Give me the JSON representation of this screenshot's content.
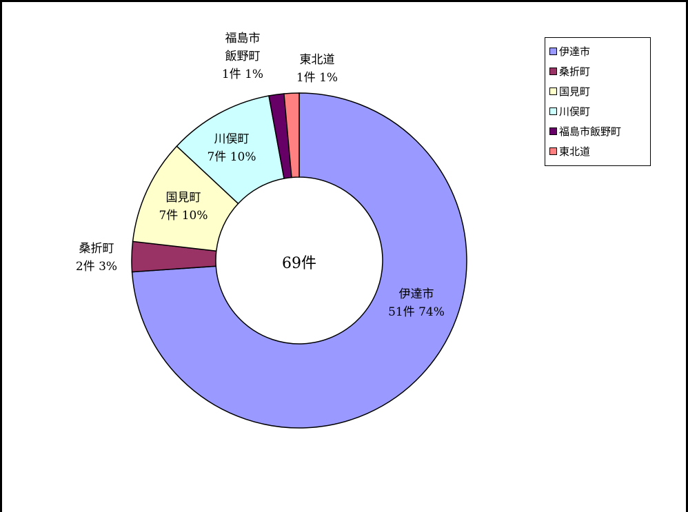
{
  "chart_data": {
    "type": "donut",
    "categories": [
      "伊達市",
      "桑折町",
      "国見町",
      "川俣町",
      "福島市飯野町",
      "東北道"
    ],
    "values": [
      51,
      2,
      7,
      7,
      1,
      1
    ],
    "value_labels": [
      "51件 74%",
      "2件 3%",
      "7件 10%",
      "7件 10%",
      "1件 1%",
      "1件 1%"
    ],
    "colors": [
      "#9999ff",
      "#993366",
      "#ffffcc",
      "#ccffff",
      "#660066",
      "#ff8080"
    ],
    "center_label": "69件",
    "legend": "top-right"
  }
}
